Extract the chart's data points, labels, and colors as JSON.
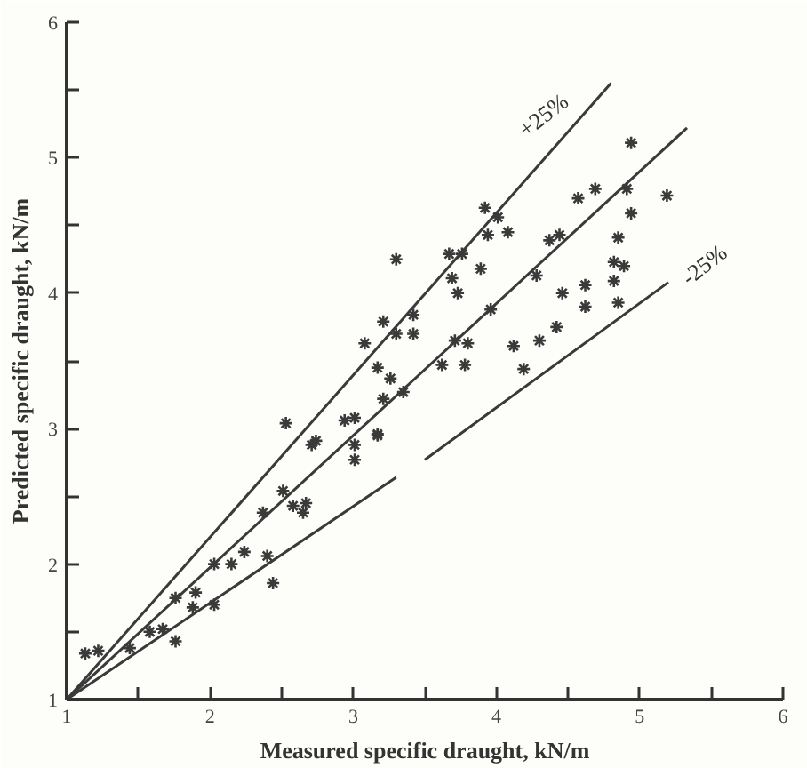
{
  "chart_data": {
    "type": "scatter",
    "xlabel": "Measured specific draught, kN/m",
    "ylabel": "Predicted specific draught, kN/m",
    "xlim": [
      1,
      6
    ],
    "ylim": [
      1,
      6
    ],
    "xticks": [
      1,
      {
        "value": 1.5,
        "label": null
      },
      2,
      {
        "value": 2.5,
        "label": null
      },
      3,
      {
        "value": 3.5,
        "label": null
      },
      4,
      {
        "value": 4.5,
        "label": null
      },
      5,
      {
        "value": 5.5,
        "label": null
      },
      6
    ],
    "yticks": [
      1,
      {
        "value": 1.5,
        "label": null
      },
      2,
      {
        "value": 2.5,
        "label": null
      },
      3,
      {
        "value": 3.5,
        "label": null
      },
      4,
      {
        "value": 4.5,
        "label": null
      },
      5,
      {
        "value": 5.5,
        "label": null
      },
      6
    ],
    "grid": false,
    "marker": "cross",
    "series": [
      {
        "color": "#3a3a3a",
        "x": [
          4.94,
          4.69,
          4.57,
          4.91,
          5.19,
          4.94,
          4.85,
          4.01,
          3.92,
          3.94,
          4.08,
          4.44,
          4.37,
          3.67,
          3.76,
          3.3,
          3.89,
          3.69,
          3.73,
          4.28,
          3.42,
          3.21,
          3.3,
          3.42,
          3.08,
          3.71,
          3.8,
          3.96,
          4.46,
          4.62,
          4.62,
          4.82,
          4.89,
          4.82,
          4.12,
          4.3,
          4.42,
          4.19,
          4.85,
          3.17,
          3.26,
          3.62,
          3.78,
          3.21,
          3.35,
          2.94,
          3.01,
          3.17,
          2.53,
          2.74,
          2.71,
          3.01,
          3.17,
          3.01,
          2.51,
          2.37,
          2.58,
          2.67,
          2.65,
          2.24,
          2.03,
          2.15,
          2.4,
          2.44,
          1.76,
          1.9,
          1.88,
          2.03,
          1.58,
          1.67,
          1.76,
          1.44,
          1.22,
          1.13
        ],
        "values": [
          5.11,
          4.77,
          4.7,
          4.77,
          4.72,
          4.59,
          4.41,
          4.56,
          4.63,
          4.43,
          4.45,
          4.43,
          4.39,
          4.29,
          4.29,
          4.25,
          4.18,
          4.11,
          4.0,
          4.13,
          3.84,
          3.79,
          3.7,
          3.7,
          3.63,
          3.65,
          3.63,
          3.88,
          4.0,
          4.06,
          3.9,
          4.09,
          4.2,
          4.23,
          3.61,
          3.65,
          3.75,
          3.44,
          3.93,
          3.45,
          3.37,
          3.47,
          3.47,
          3.22,
          3.27,
          3.06,
          3.08,
          2.96,
          3.04,
          2.91,
          2.88,
          2.88,
          2.95,
          2.77,
          2.54,
          2.38,
          2.43,
          2.45,
          2.38,
          2.09,
          2.0,
          2.0,
          2.06,
          1.86,
          1.75,
          1.79,
          1.68,
          1.7,
          1.5,
          1.52,
          1.43,
          1.38,
          1.36,
          1.34
        ]
      },
      {
        "type": "line",
        "marker": "none",
        "color": "#3a3a3a",
        "x": [
          1.0,
          4.8
        ],
        "values": [
          1.0,
          5.55
        ]
      },
      {
        "type": "line",
        "marker": "none",
        "color": "#3a3a3a",
        "x": [
          1.0,
          5.33
        ],
        "values": [
          1.0,
          5.22
        ]
      },
      {
        "type": "line",
        "marker": "none",
        "color": "#3a3a3a",
        "x": [
          1.0,
          3.3,
          3.4,
          3.5,
          5.2
        ],
        "values": [
          1.0,
          2.64,
          null,
          2.77,
          4.08
        ]
      }
    ],
    "annotations": [
      {
        "text": "+25%",
        "x": 4.45,
        "y": 5.13
      },
      {
        "text": "-25%",
        "x": 5.2,
        "y": 4.08
      }
    ]
  }
}
